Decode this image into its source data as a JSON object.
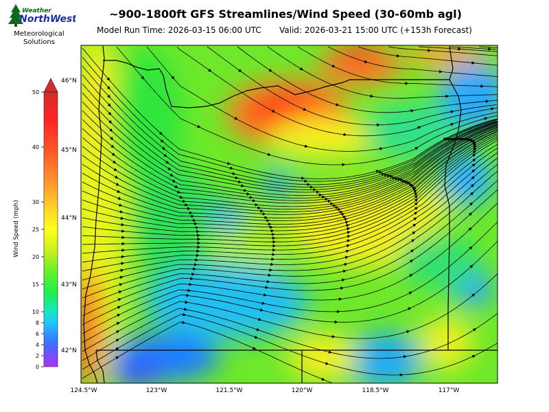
{
  "logo": {
    "brand_top": "Weather",
    "brand_main": "NorthWest",
    "line1": "Meteorological",
    "line2": "Solutions"
  },
  "header": {
    "title": "~900-1800ft GFS Streamlines/Wind Speed (30-60mb agl)",
    "model_run": "Model Run Time: 2026-03-15 06:00 UTC",
    "valid": "Valid: 2026-03-21 15:00 UTC  (+153h Forecast)"
  },
  "colorbar": {
    "label": "Wind Speed (mph)",
    "ticks": [
      "0",
      "2",
      "4",
      "6",
      "8",
      "10",
      "15",
      "20",
      "25",
      "30",
      "40",
      "50"
    ],
    "colors": [
      "#b030ff",
      "#7a4dff",
      "#3f6dff",
      "#2f95ff",
      "#22c4ff",
      "#15e6c8",
      "#1ef04a",
      "#6af02a",
      "#c8f020",
      "#ffff1c",
      "#ffd02a",
      "#ff9d2e",
      "#ff5a26",
      "#ff2424",
      "#d42b2b"
    ]
  },
  "map": {
    "lat_labels": [
      "46°N",
      "45°N",
      "44°N",
      "43°N",
      "42°N"
    ],
    "lon_labels": [
      "124.5°W",
      "123°W",
      "121.5°W",
      "120°W",
      "118.5°W",
      "117°W"
    ]
  }
}
